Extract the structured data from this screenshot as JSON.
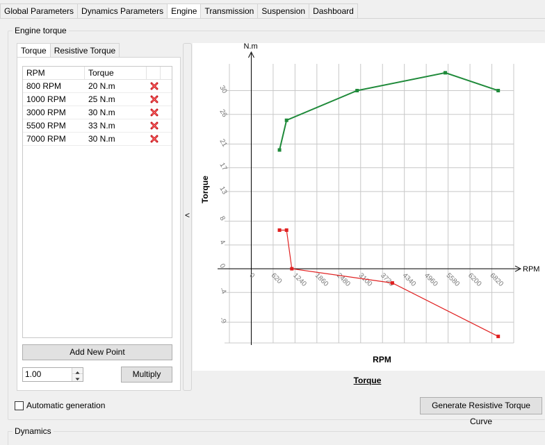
{
  "top_tabs": [
    "Global Parameters",
    "Dynamics Parameters",
    "Engine",
    "Transmission",
    "Suspension",
    "Dashboard"
  ],
  "active_top_tab": "Engine",
  "engine_group_title": "Engine torque",
  "inner_tabs": [
    "Torque",
    "Resistive Torque"
  ],
  "table": {
    "headers": [
      "RPM",
      "Torque"
    ],
    "rows": [
      {
        "rpm": "800 RPM",
        "torque": "20 N.m"
      },
      {
        "rpm": "1000 RPM",
        "torque": "25 N.m"
      },
      {
        "rpm": "3000 RPM",
        "torque": "30 N.m"
      },
      {
        "rpm": "5500 RPM",
        "torque": "33 N.m"
      },
      {
        "rpm": "7000 RPM",
        "torque": "30 N.m"
      }
    ],
    "delete_icon": "red-x-icon"
  },
  "add_point_label": "Add New Point",
  "multiplier_value": "1.00",
  "multiply_label": "Multiply",
  "splitter_arrow": "<",
  "chart_caption": "Torque",
  "auto_generation_label": "Automatic generation",
  "auto_generation_checked": false,
  "generate_button_label": "Generate Resistive Torque Curve",
  "dynamics_group_title": "Dynamics",
  "chart_data": {
    "type": "line",
    "xlabel": "RPM",
    "ylabel": "Torque",
    "x_axis_arrow_label": "RPM",
    "y_axis_unit_label": "N.m",
    "x_ticks": [
      "0",
      "620",
      "1240",
      "1860",
      "2480",
      "3100",
      "3720",
      "4340",
      "4960",
      "5580",
      "6200",
      "6820"
    ],
    "y_ticks": [
      "-9",
      "-4",
      "0",
      "4",
      "8",
      "13",
      "17",
      "21",
      "26",
      "30"
    ],
    "xlim": [
      -620,
      7440
    ],
    "ylim": [
      -12.5,
      34.5
    ],
    "grid": true,
    "series": [
      {
        "color": "#1f8a3a",
        "x": [
          800,
          1000,
          3000,
          5500,
          7000
        ],
        "y": [
          20,
          25,
          30,
          33,
          30
        ]
      },
      {
        "color": "#e02020",
        "x": [
          800,
          1000,
          1150,
          4000,
          7000
        ],
        "y": [
          6.5,
          6.5,
          0,
          -2.4,
          -11.4
        ]
      }
    ]
  }
}
